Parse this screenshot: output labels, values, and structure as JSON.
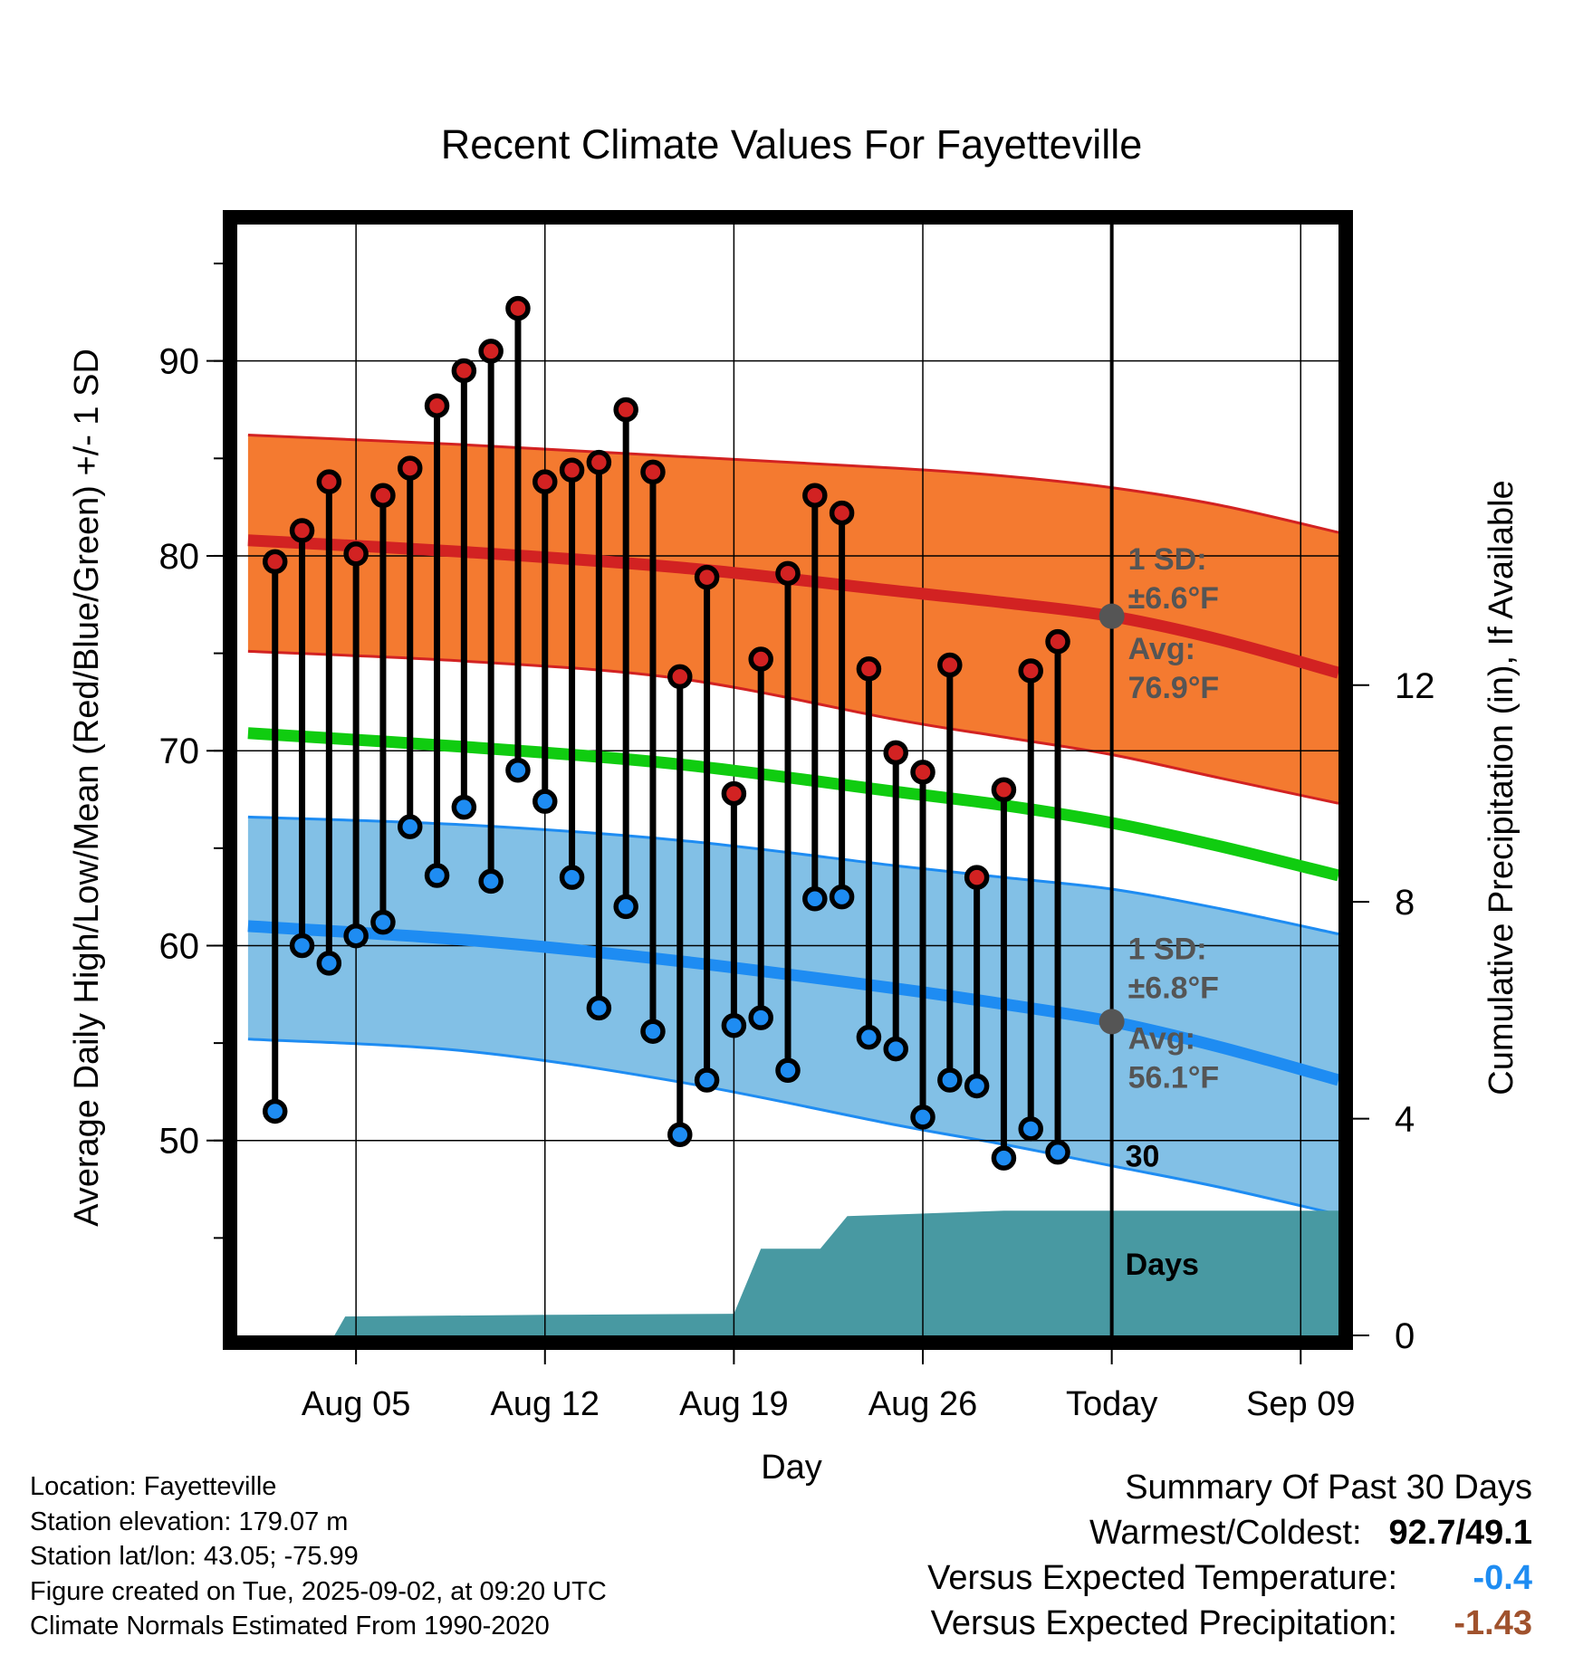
{
  "chart_data": {
    "type": "line",
    "title": "Recent Climate Values For Fayetteville",
    "xlabel": "Day",
    "ylabel": "Average Daily High/Low/Mean (Red/Blue/Green) +/- 1 SD",
    "y2label": "Cumulative Precipitation (in), If Available",
    "ylim": [
      40,
      97
    ],
    "y2lim": [
      0,
      20.5
    ],
    "yticks": [
      50,
      60,
      70,
      80,
      90
    ],
    "y2ticks": [
      0,
      4,
      8,
      12
    ],
    "xlim": [
      -0.4,
      40.4
    ],
    "x_ticks": [
      {
        "day": 4,
        "label": "Aug 05"
      },
      {
        "day": 11,
        "label": "Aug 12"
      },
      {
        "day": 18,
        "label": "Aug 19"
      },
      {
        "day": 25,
        "label": "Aug 26"
      },
      {
        "day": 32,
        "label": "Today"
      },
      {
        "day": 39,
        "label": "Sep 09"
      }
    ],
    "today_day": 32,
    "grid": true,
    "colors": {
      "high_band": "#f47a30",
      "high_line": "#d22222",
      "mean_line": "#10cc10",
      "low_band": "#82c0e6",
      "low_line": "#1e8cf2",
      "precip": "#4899a2",
      "today_dot": "#555555",
      "annotation": "#555555",
      "high_dot": "#d22222",
      "low_dot": "#1e8cf2"
    },
    "normals": {
      "days": [
        0,
        8,
        16,
        24,
        28,
        32,
        36,
        40.4
      ],
      "high_avg": [
        80.8,
        80.2,
        79.4,
        78.2,
        77.6,
        76.9,
        75.7,
        74.0
      ],
      "mean_avg": [
        70.9,
        70.2,
        69.3,
        67.9,
        67.2,
        66.3,
        65.1,
        63.6
      ],
      "low_avg": [
        61.0,
        60.3,
        59.2,
        57.8,
        57.0,
        56.1,
        54.8,
        53.1
      ],
      "high_upper": [
        86.2,
        85.7,
        85.1,
        84.5,
        84.1,
        83.5,
        82.6,
        81.2
      ],
      "high_lower": [
        75.1,
        74.6,
        73.7,
        71.6,
        70.7,
        69.8,
        68.6,
        67.3
      ],
      "low_upper": [
        66.6,
        66.2,
        65.4,
        64.1,
        63.5,
        62.9,
        61.9,
        60.6
      ],
      "low_lower": [
        55.2,
        54.6,
        53.0,
        50.8,
        49.8,
        48.7,
        47.6,
        46.2
      ]
    },
    "obs": {
      "days": [
        1,
        2,
        3,
        4,
        5,
        6,
        7,
        8,
        9,
        10,
        11,
        12,
        13,
        14,
        15,
        16,
        17,
        18,
        19,
        20,
        21,
        22,
        23,
        24,
        25,
        26,
        27,
        28,
        29,
        30,
        31
      ],
      "highs": [
        79.7,
        81.3,
        83.8,
        80.1,
        83.1,
        84.5,
        87.7,
        89.5,
        90.5,
        92.7,
        83.8,
        84.4,
        84.8,
        87.5,
        84.3,
        73.8,
        78.9,
        67.8,
        74.7,
        79.1,
        83.1,
        82.2,
        74.2,
        69.9,
        68.9,
        74.4,
        63.5,
        68.0,
        74.1,
        75.6,
        null
      ],
      "lows": [
        51.5,
        60.0,
        59.1,
        60.5,
        61.2,
        66.1,
        63.6,
        67.1,
        63.3,
        69.0,
        67.4,
        63.5,
        56.8,
        62.0,
        55.6,
        50.3,
        53.1,
        55.9,
        56.3,
        53.6,
        62.4,
        62.5,
        55.3,
        54.7,
        51.2,
        53.1,
        52.8,
        49.1,
        50.6,
        49.4,
        null
      ]
    },
    "precip": {
      "days": [
        0,
        3.2,
        3.6,
        11,
        18,
        19,
        21.2,
        22.2,
        28,
        40.4
      ],
      "values": [
        0,
        0,
        0.35,
        0.38,
        0.4,
        1.6,
        1.6,
        2.2,
        2.3,
        2.3
      ]
    },
    "annotations": {
      "high_sd_label": "1 SD:",
      "high_sd_value": "±6.6°F",
      "high_avg_label": "Avg:",
      "high_avg_value": "76.9°F",
      "low_sd_label": "1 SD:",
      "low_sd_value": "±6.8°F",
      "low_avg_label": "Avg:",
      "low_avg_value": "56.1°F",
      "days_label_1": "30",
      "days_label_2": "Days"
    }
  },
  "info": {
    "location": "Location: Fayetteville",
    "elevation": "Station elevation: 179.07 m",
    "latlon": "Station lat/lon: 43.05; -75.99",
    "created": "Figure created on Tue, 2025-09-02, at 09:20 UTC",
    "normals": "Climate Normals Estimated From 1990-2020"
  },
  "summary": {
    "title": "Summary Of Past 30 Days",
    "warmest_label": "Warmest/Coldest:",
    "warmest_value": "92.7/49.1",
    "temp_label": "Versus Expected Temperature:",
    "temp_value": "-0.4",
    "temp_color": "#1e8cf2",
    "precip_label": "Versus Expected Precipitation:",
    "precip_value": "-1.43",
    "precip_color": "#a0522d"
  }
}
